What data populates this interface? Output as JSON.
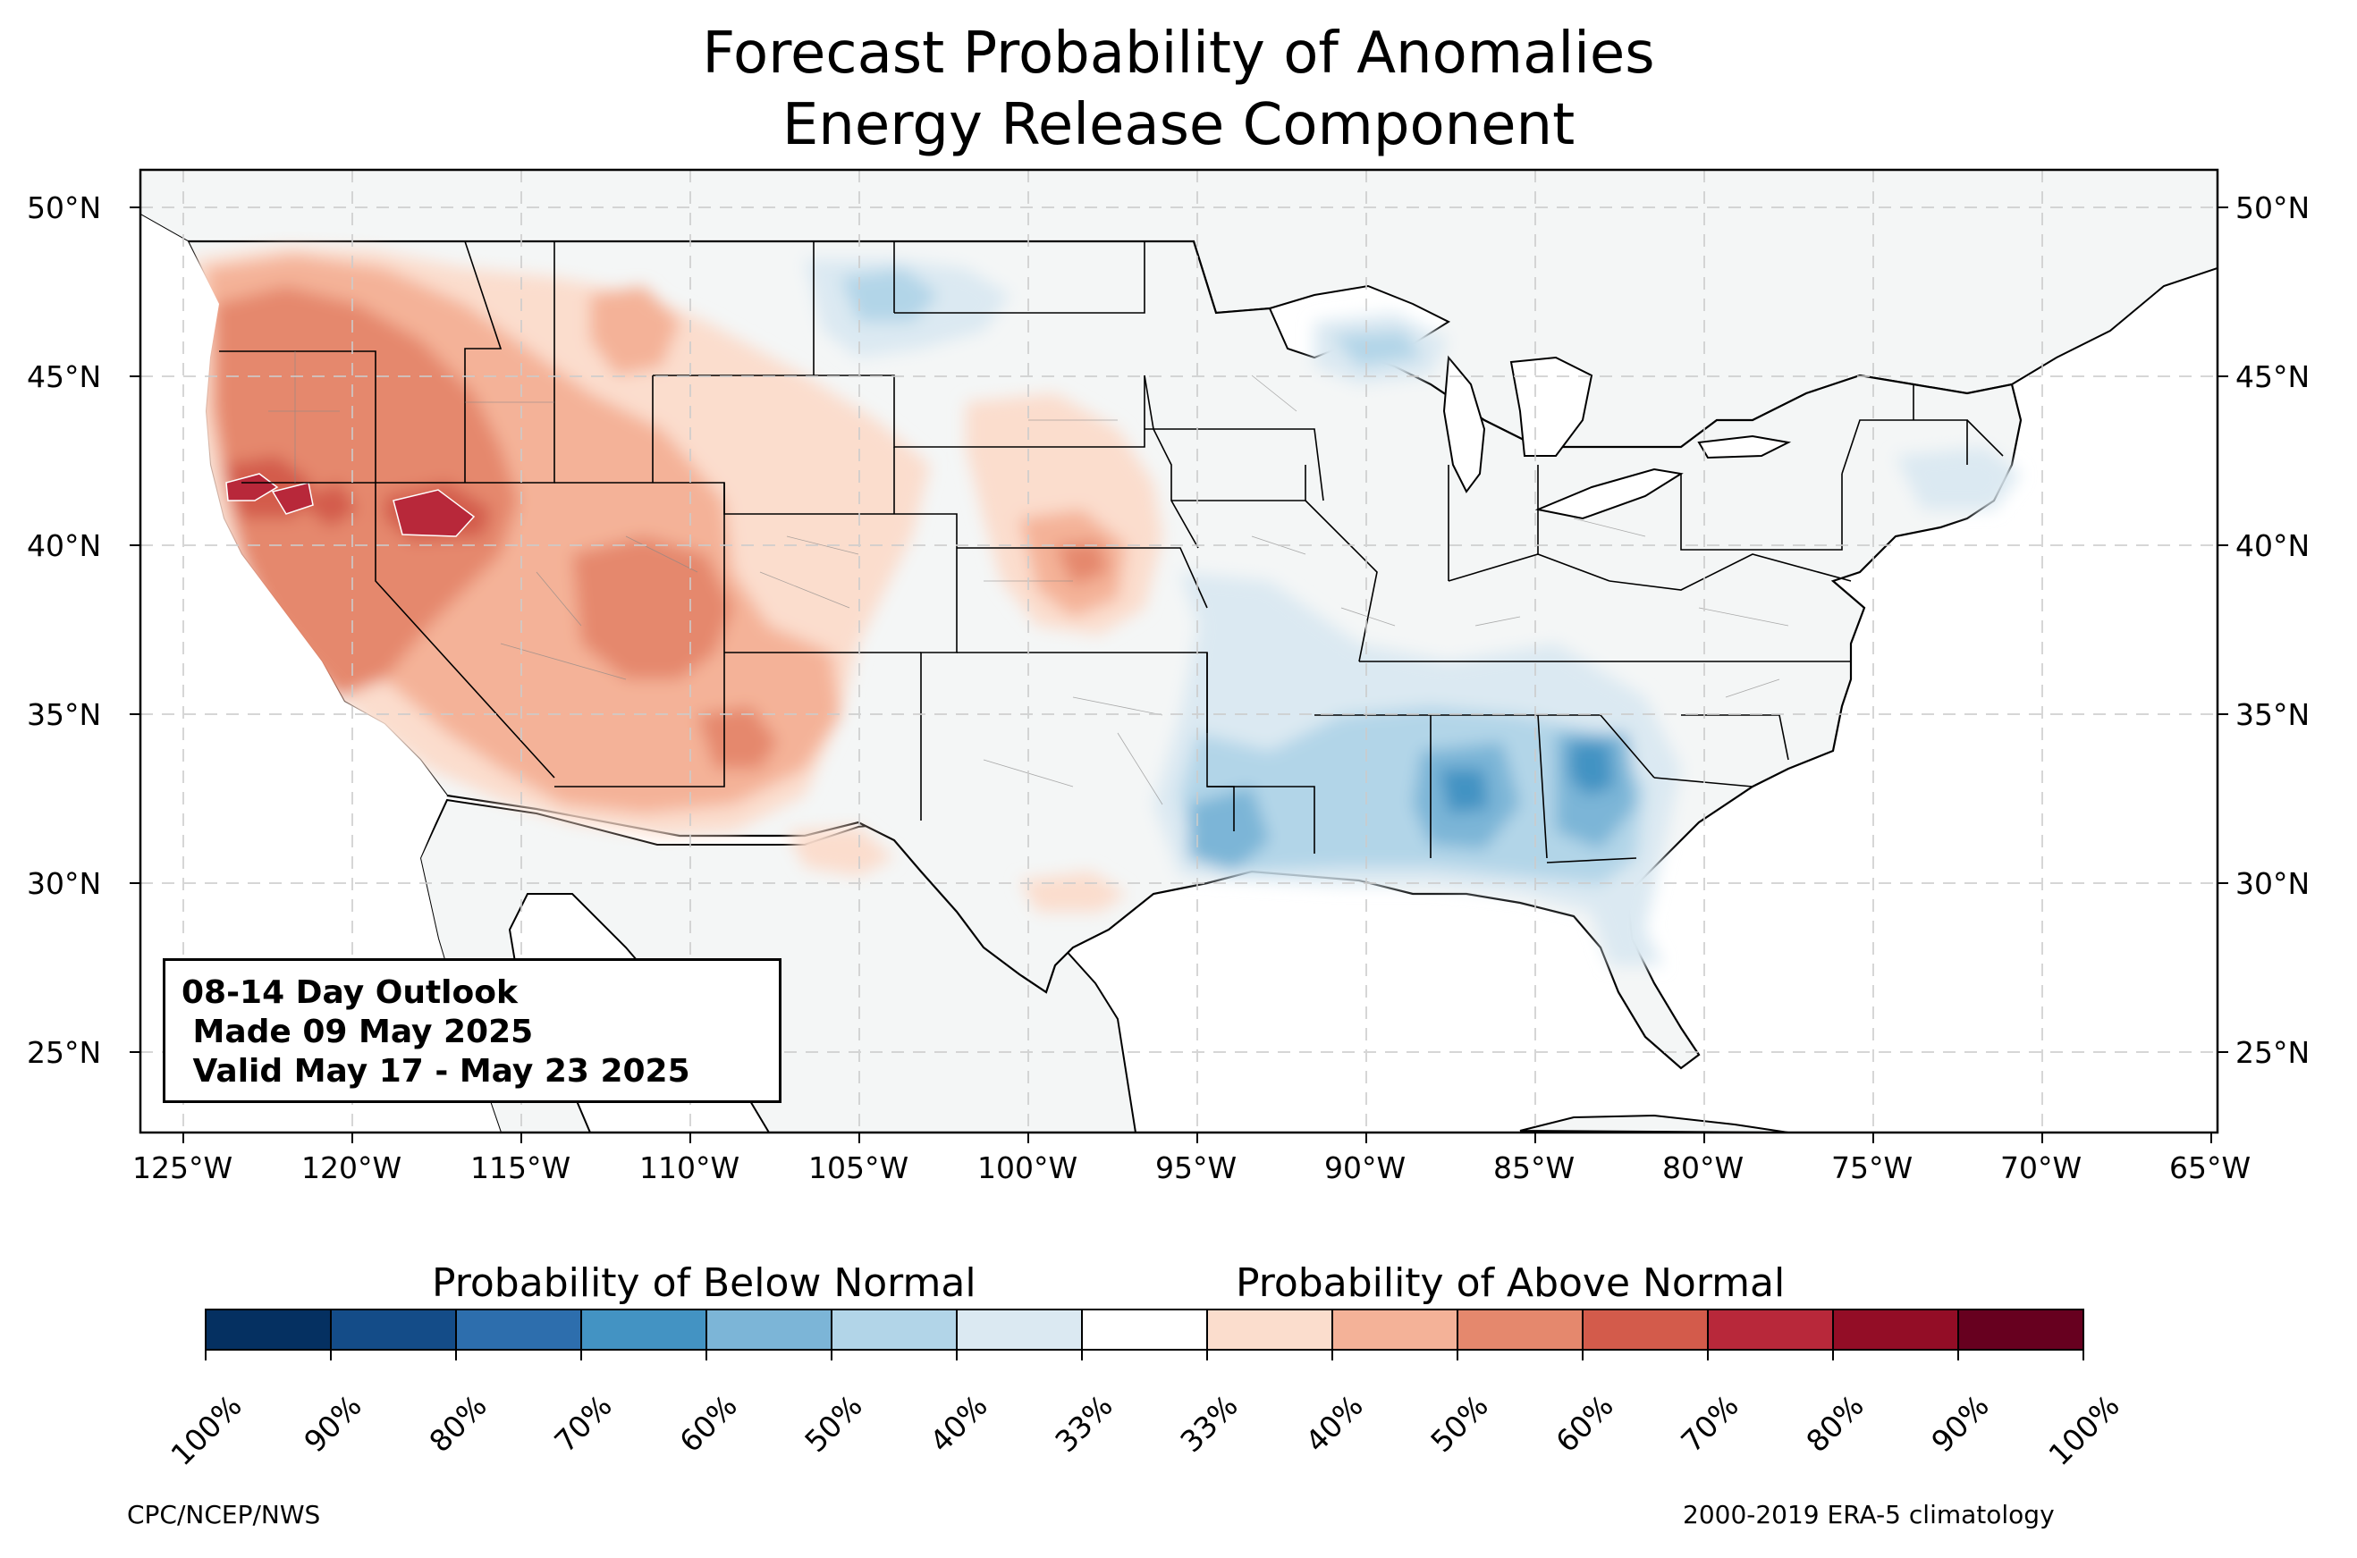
{
  "title": {
    "line1": "Forecast Probability of Anomalies",
    "line2": "Energy Release Component"
  },
  "map": {
    "lat_range": [
      22.75,
      51.2
    ],
    "lon_range": [
      -126.5,
      -65
    ],
    "lat_ticks": [
      "50°N",
      "45°N",
      "40°N",
      "35°N",
      "30°N",
      "25°N"
    ],
    "lon_ticks": [
      "125°W",
      "120°W",
      "115°W",
      "110°W",
      "105°W",
      "100°W",
      "95°W",
      "90°W",
      "85°W",
      "80°W",
      "75°W",
      "70°W",
      "65°W"
    ],
    "gridlines": "dashed",
    "ocean_color": "#ffffff",
    "land_color": "#f4f6f6",
    "anomaly_regions": [
      {
        "area": "Pacific Northwest / Oregon",
        "category": "above",
        "level": "60%"
      },
      {
        "area": "Northern California / Nevada",
        "category": "above",
        "level": "70%"
      },
      {
        "area": "Four Corners / Southwest",
        "category": "above",
        "level": "50-60%"
      },
      {
        "area": "Central Kansas",
        "category": "above",
        "level": "50%"
      },
      {
        "area": "Lower Mississippi Valley / Gulf Coast",
        "category": "below",
        "level": "50-60%"
      },
      {
        "area": "Georgia / Southeast",
        "category": "below",
        "level": "70%"
      },
      {
        "area": "Upper Great Lakes",
        "category": "below",
        "level": "40-50%"
      }
    ]
  },
  "info_box": {
    "line1": "08-14 Day Outlook",
    "line2": " Made 09 May 2025",
    "line3": " Valid May 17 - May 23 2025"
  },
  "legend": {
    "below_label": "Probability of Below Normal",
    "above_label": "Probability of Above Normal",
    "ticks": [
      "100%",
      "90%",
      "80%",
      "70%",
      "60%",
      "50%",
      "40%",
      "33%",
      "33%",
      "40%",
      "50%",
      "60%",
      "70%",
      "80%",
      "90%",
      "100%"
    ],
    "colors": [
      "#053061",
      "#144c88",
      "#2d6ead",
      "#4393c3",
      "#7cb5d7",
      "#b2d5e8",
      "#dbe9f2",
      "#ffffff",
      "#fbddcd",
      "#f4b298",
      "#e5886d",
      "#d35b4b",
      "#b8283a",
      "#930d26",
      "#67001f"
    ]
  },
  "footer": {
    "left": "CPC/NCEP/NWS",
    "right": "2000-2019 ERA-5 climatology"
  }
}
